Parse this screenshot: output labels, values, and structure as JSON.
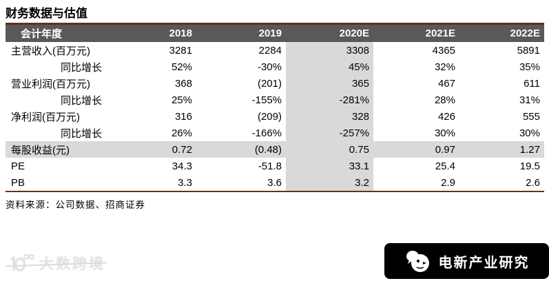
{
  "title": "财务数据与估值",
  "table": {
    "header": {
      "label": "会计年度",
      "years": [
        "2018",
        "2019",
        "2020E",
        "2021E",
        "2022E"
      ]
    },
    "highlight_column_index": 2,
    "rows": [
      {
        "label": "主营收入(百万元)",
        "indent": false,
        "highlight_row": false,
        "values": [
          "3281",
          "2284",
          "3308",
          "4365",
          "5891"
        ]
      },
      {
        "label": "同比增长",
        "indent": true,
        "highlight_row": false,
        "values": [
          "52%",
          "-30%",
          "45%",
          "32%",
          "35%"
        ]
      },
      {
        "label": "营业利润(百万元)",
        "indent": false,
        "highlight_row": false,
        "values": [
          "368",
          "(201)",
          "365",
          "467",
          "611"
        ]
      },
      {
        "label": "同比增长",
        "indent": true,
        "highlight_row": false,
        "values": [
          "25%",
          "-155%",
          "-281%",
          "28%",
          "31%"
        ]
      },
      {
        "label": "净利润(百万元)",
        "indent": false,
        "highlight_row": false,
        "values": [
          "316",
          "(209)",
          "328",
          "426",
          "555"
        ]
      },
      {
        "label": "同比增长",
        "indent": true,
        "highlight_row": false,
        "values": [
          "26%",
          "-166%",
          "-257%",
          "30%",
          "30%"
        ]
      },
      {
        "label": "每股收益(元)",
        "indent": false,
        "highlight_row": true,
        "values": [
          "0.72",
          "(0.48)",
          "0.75",
          "0.97",
          "1.27"
        ]
      },
      {
        "label": "PE",
        "indent": false,
        "highlight_row": false,
        "values": [
          "34.3",
          "-51.8",
          "33.1",
          "25.4",
          "19.5"
        ]
      },
      {
        "label": "PB",
        "indent": false,
        "highlight_row": false,
        "values": [
          "3.3",
          "3.6",
          "3.2",
          "2.9",
          "2.6"
        ]
      }
    ]
  },
  "source_note": "资料来源：公司数据、招商证券",
  "watermark_left": {
    "text": "大数跨境",
    "icon": "numeral-100-logo"
  },
  "watermark_right": {
    "text": "电新产业研究",
    "icon": "chick-logo"
  },
  "colors": {
    "accent_line": "#63301c",
    "header_bg": "#595959",
    "header_text": "#ffffff",
    "highlight": "#d9d9d9",
    "banner_bg": "#000000",
    "banner_text": "#ffffff",
    "watermark_gray": "#e2e2e2"
  }
}
